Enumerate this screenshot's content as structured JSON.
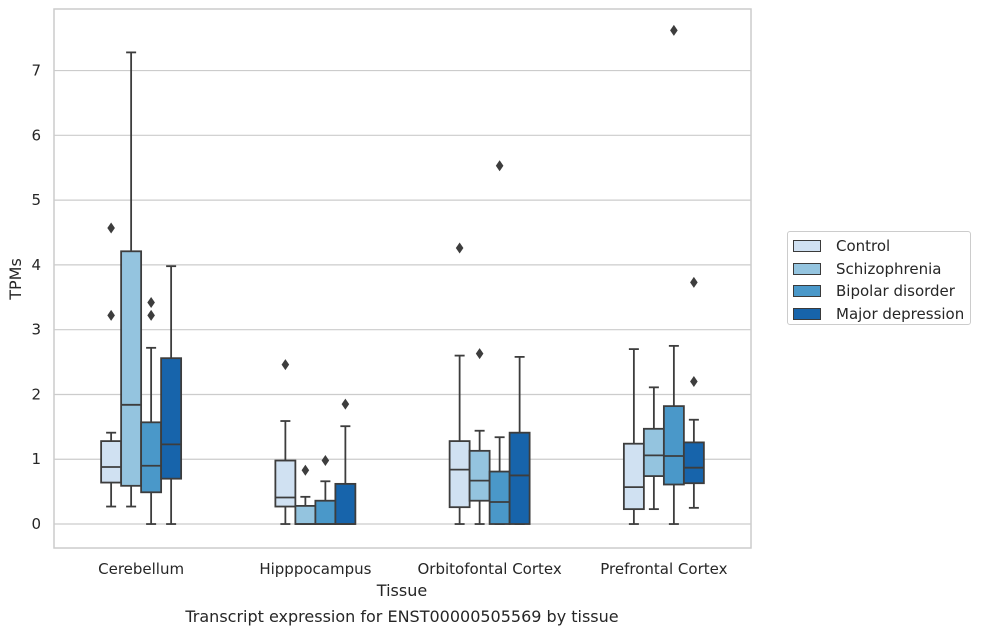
{
  "chart_data": {
    "type": "box",
    "xlabel": "Tissue",
    "ylabel": "TPMs",
    "caption": "Transcript expression for ENST00000505569 by tissue",
    "categories": [
      "Cerebellum",
      "Hipppocampus",
      "Orbitofontal Cortex",
      "Prefrontal Cortex"
    ],
    "y_ticks": [
      0,
      1,
      2,
      3,
      4,
      5,
      6,
      7
    ],
    "ylim": [
      -0.37,
      7.95
    ],
    "grid": "horizontal",
    "legend_position": "center-right outside",
    "series": [
      {
        "name": "Control",
        "color": "#d0e1f2",
        "boxes": [
          {
            "whislo": 0.27,
            "q1": 0.64,
            "med": 0.88,
            "q3": 1.28,
            "whishi": 1.41,
            "fliers": [
              3.22,
              4.57
            ]
          },
          {
            "whislo": 0.0,
            "q1": 0.27,
            "med": 0.41,
            "q3": 0.98,
            "whishi": 1.59,
            "fliers": [
              2.46
            ]
          },
          {
            "whislo": 0.0,
            "q1": 0.26,
            "med": 0.84,
            "q3": 1.28,
            "whishi": 2.6,
            "fliers": [
              4.26
            ]
          },
          {
            "whislo": 0.0,
            "q1": 0.23,
            "med": 0.57,
            "q3": 1.24,
            "whishi": 2.7,
            "fliers": []
          }
        ]
      },
      {
        "name": "Schizophrenia",
        "color": "#94c4df",
        "boxes": [
          {
            "whislo": 0.27,
            "q1": 0.59,
            "med": 1.84,
            "q3": 4.21,
            "whishi": 7.28,
            "fliers": []
          },
          {
            "whislo": 0.0,
            "q1": 0.0,
            "med": 0.0,
            "q3": 0.28,
            "whishi": 0.42,
            "fliers": [
              0.83
            ]
          },
          {
            "whislo": 0.0,
            "q1": 0.36,
            "med": 0.67,
            "q3": 1.13,
            "whishi": 1.44,
            "fliers": [
              2.63
            ]
          },
          {
            "whislo": 0.23,
            "q1": 0.74,
            "med": 1.06,
            "q3": 1.47,
            "whishi": 2.11,
            "fliers": []
          }
        ]
      },
      {
        "name": "Bipolar disorder",
        "color": "#4a98c9",
        "boxes": [
          {
            "whislo": 0.0,
            "q1": 0.49,
            "med": 0.9,
            "q3": 1.57,
            "whishi": 2.72,
            "fliers": [
              3.22,
              3.42
            ]
          },
          {
            "whislo": 0.0,
            "q1": 0.0,
            "med": 0.0,
            "q3": 0.36,
            "whishi": 0.66,
            "fliers": [
              0.98
            ]
          },
          {
            "whislo": 0.0,
            "q1": 0.0,
            "med": 0.34,
            "q3": 0.81,
            "whishi": 1.34,
            "fliers": [
              5.53
            ]
          },
          {
            "whislo": 0.0,
            "q1": 0.61,
            "med": 1.05,
            "q3": 1.82,
            "whishi": 2.75,
            "fliers": [
              7.62
            ]
          }
        ]
      },
      {
        "name": "Major depression",
        "color": "#1764ab",
        "boxes": [
          {
            "whislo": 0.0,
            "q1": 0.7,
            "med": 1.23,
            "q3": 2.56,
            "whishi": 3.98,
            "fliers": []
          },
          {
            "whislo": 0.0,
            "q1": 0.0,
            "med": 0.0,
            "q3": 0.62,
            "whishi": 1.51,
            "fliers": [
              1.85
            ]
          },
          {
            "whislo": 0.0,
            "q1": 0.0,
            "med": 0.75,
            "q3": 1.41,
            "whishi": 2.58,
            "fliers": []
          },
          {
            "whislo": 0.25,
            "q1": 0.63,
            "med": 0.87,
            "q3": 1.26,
            "whishi": 1.61,
            "fliers": [
              2.2,
              3.73
            ]
          }
        ]
      }
    ]
  }
}
